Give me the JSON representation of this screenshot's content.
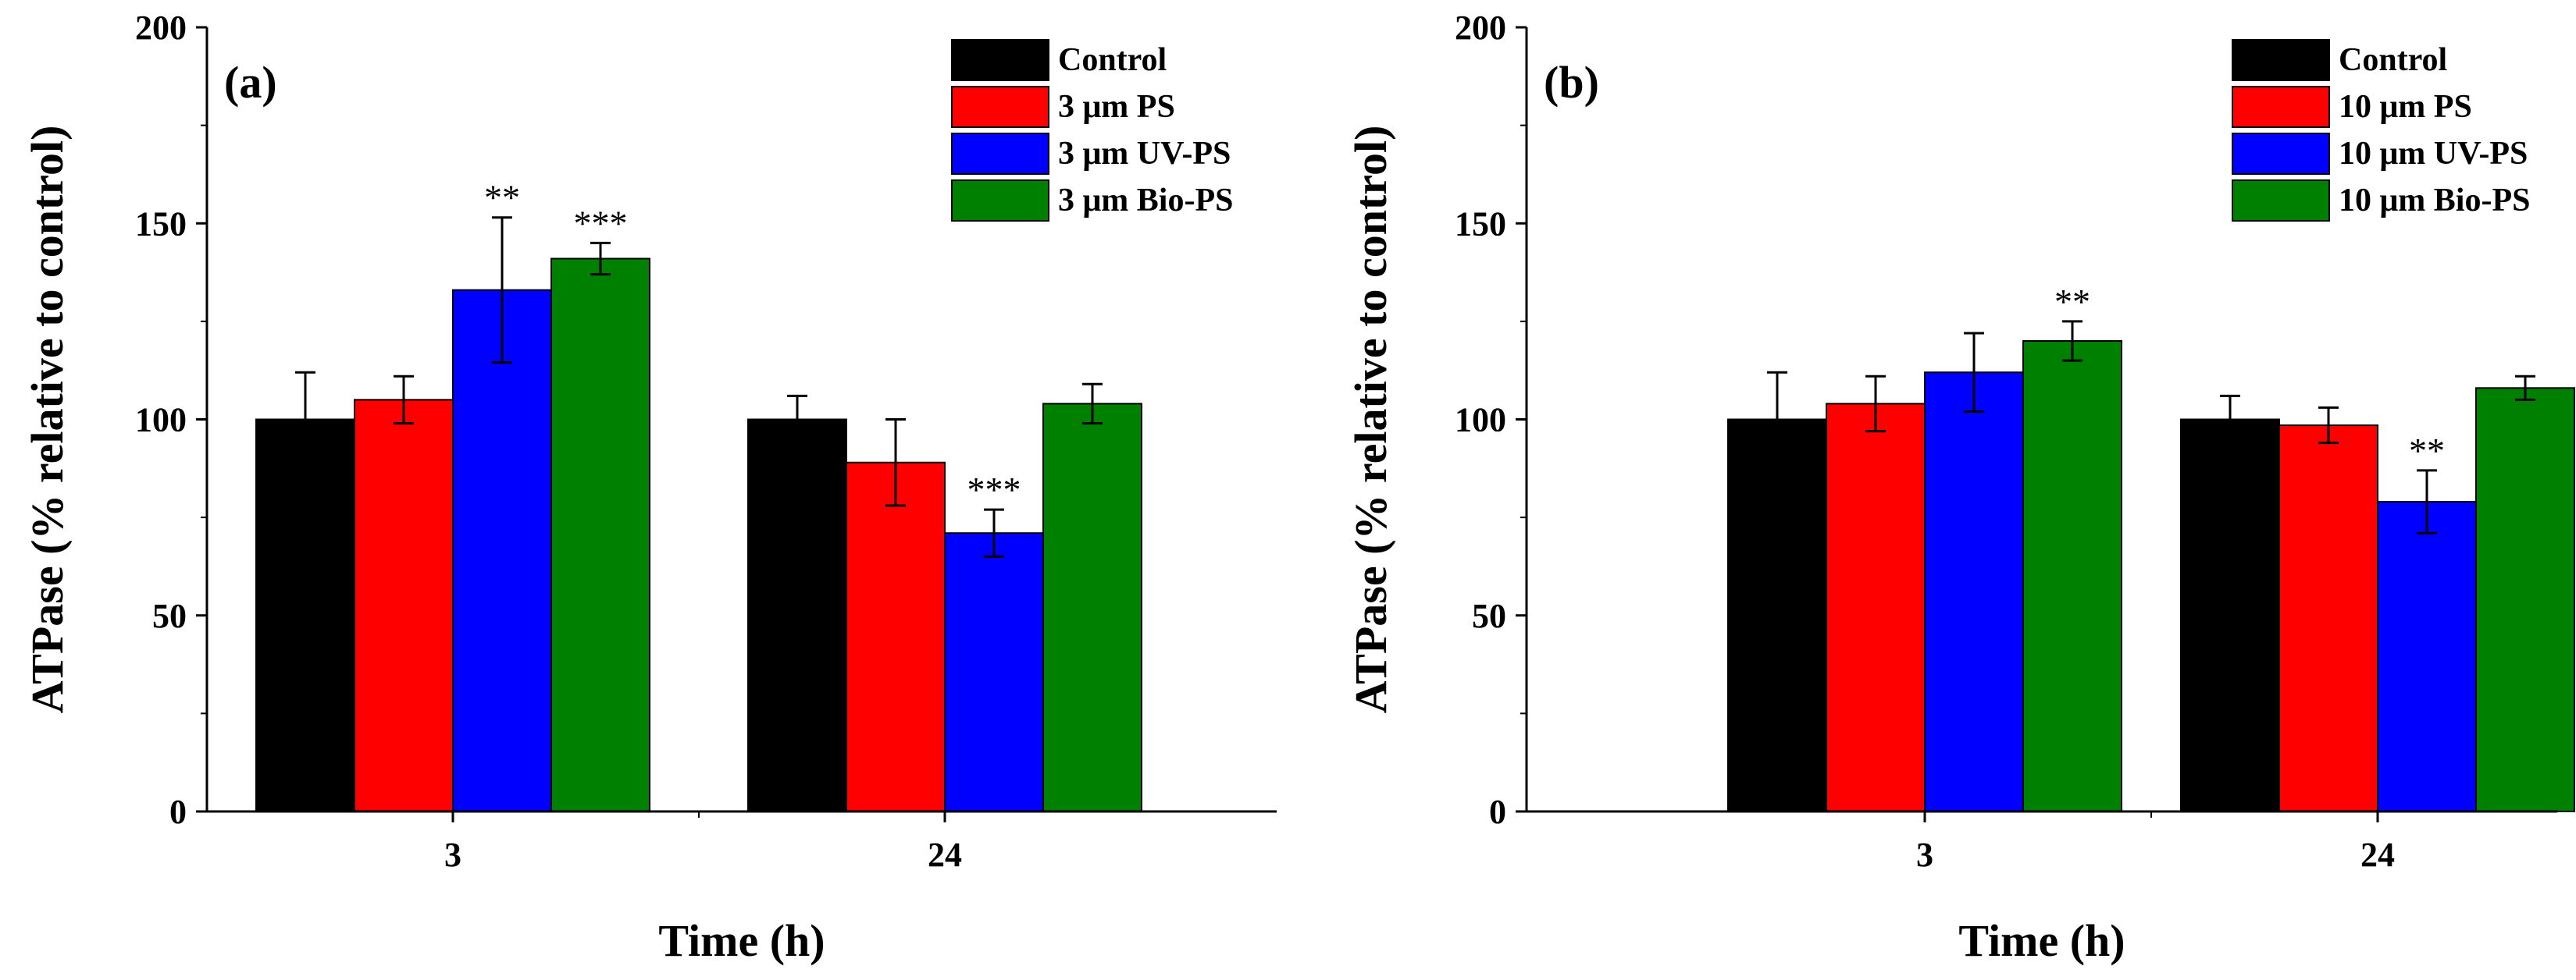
{
  "chart_data": [
    {
      "type": "bar",
      "panel_label": "(a)",
      "xlabel": "Time (h)",
      "ylabel": "ATPase (% relative to control)",
      "ylim": [
        0,
        200
      ],
      "yticks": [
        "0",
        "50",
        "100",
        "150",
        "200"
      ],
      "categories": [
        "3",
        "24"
      ],
      "legend_position": "top-right",
      "series": [
        {
          "name": "Control",
          "color": "#000000",
          "values": [
            100,
            100
          ],
          "errors": [
            12,
            6
          ],
          "significance": [
            "",
            ""
          ]
        },
        {
          "name": "3 μm PS",
          "color": "#ff0000",
          "values": [
            105,
            89
          ],
          "errors": [
            6,
            11
          ],
          "significance": [
            "",
            ""
          ]
        },
        {
          "name": "3 μm UV-PS",
          "color": "#0000ff",
          "values": [
            133,
            71
          ],
          "errors": [
            18.5,
            6
          ],
          "significance": [
            "**",
            "***"
          ]
        },
        {
          "name": "3 μm Bio-PS",
          "color": "#008000",
          "values": [
            141,
            104
          ],
          "errors": [
            4,
            5
          ],
          "significance": [
            "***",
            ""
          ]
        }
      ]
    },
    {
      "type": "bar",
      "panel_label": "(b)",
      "xlabel": "Time (h)",
      "ylabel": "ATPase (% relative to control)",
      "ylim": [
        0,
        200
      ],
      "yticks": [
        "0",
        "50",
        "100",
        "150",
        "200"
      ],
      "categories": [
        "3",
        "24"
      ],
      "legend_position": "top-right",
      "series": [
        {
          "name": "Control",
          "color": "#000000",
          "values": [
            100,
            100
          ],
          "errors": [
            12,
            6
          ],
          "significance": [
            "",
            ""
          ]
        },
        {
          "name": "10 μm PS",
          "color": "#ff0000",
          "values": [
            104,
            98.5
          ],
          "errors": [
            7,
            4.5
          ],
          "significance": [
            "",
            ""
          ]
        },
        {
          "name": "10 μm UV-PS",
          "color": "#0000ff",
          "values": [
            112,
            79
          ],
          "errors": [
            10,
            8
          ],
          "significance": [
            "",
            "**"
          ]
        },
        {
          "name": "10 μm Bio-PS",
          "color": "#008000",
          "values": [
            120,
            108
          ],
          "errors": [
            5,
            3
          ],
          "significance": [
            "**",
            ""
          ]
        }
      ]
    }
  ]
}
